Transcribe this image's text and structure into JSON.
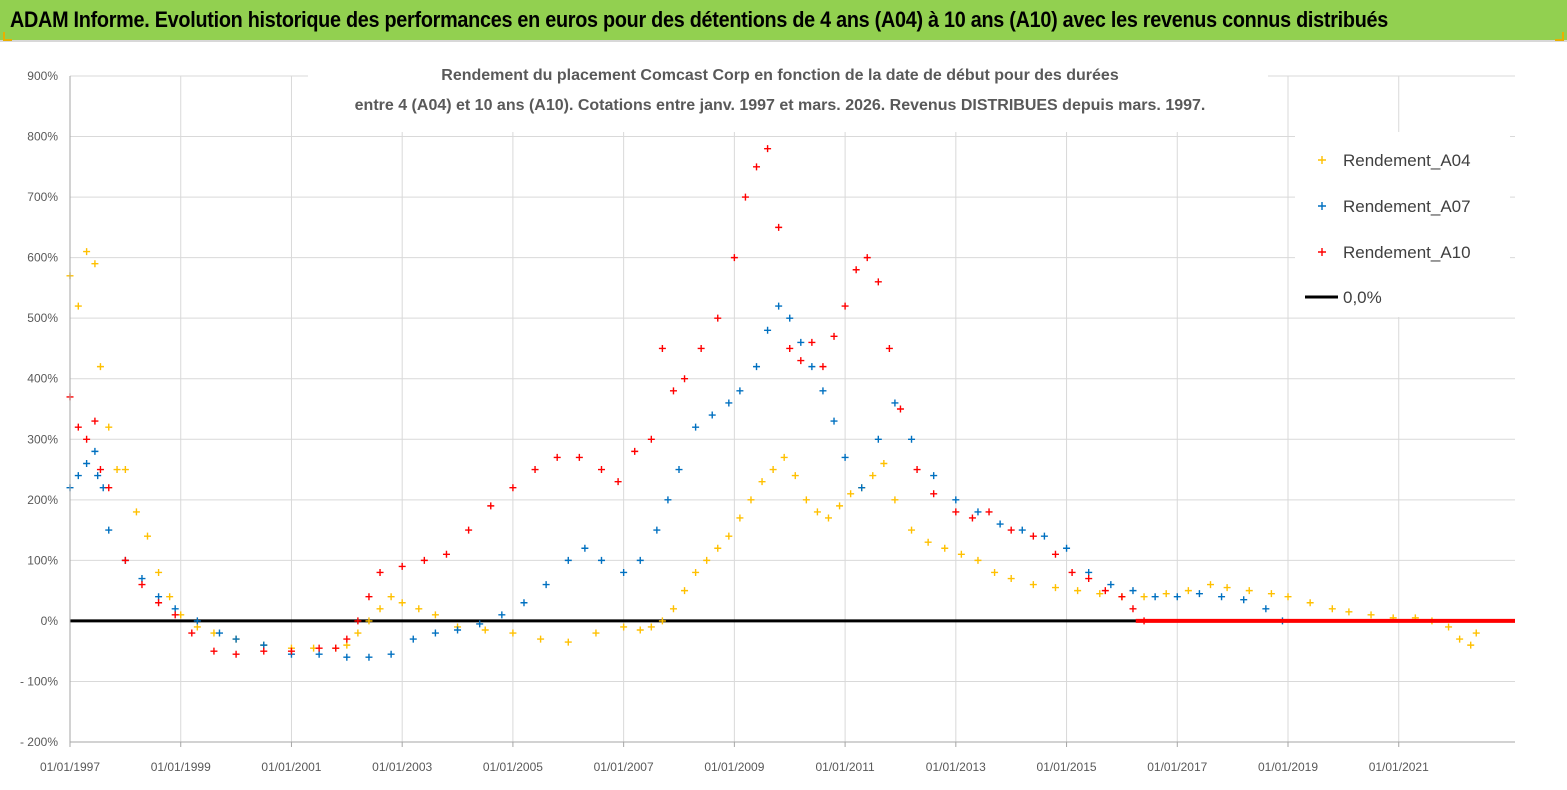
{
  "header": {
    "title": "ADAM Informe. Evolution historique des performances en euros pour des détentions de 4 ans (A04) à 10 ans (A10) avec les revenus connus distribués"
  },
  "colors": {
    "banner": "#92d050",
    "a04": "#ffc000",
    "a07": "#0070c0",
    "a10": "#ff0000",
    "zero": "#000000"
  },
  "chart_data": {
    "type": "scatter",
    "title": "Rendement du placement Comcast Corp en fonction de la date de début pour des durées",
    "subtitle": "entre 4 (A04) et 10 ans (A10). Cotations entre janv. 1997 et mars. 2026. Revenus DISTRIBUES depuis mars. 1997.",
    "xlabel": "",
    "ylabel": "",
    "xlim": [
      1997.0,
      2023.1
    ],
    "ylim": [
      -200,
      900
    ],
    "y_ticks": [
      -200,
      -100,
      0,
      100,
      200,
      300,
      400,
      500,
      600,
      700,
      800,
      900
    ],
    "y_tick_labels": [
      "- 200%",
      "- 100%",
      "0%",
      "100%",
      "200%",
      "300%",
      "400%",
      "500%",
      "600%",
      "700%",
      "800%",
      "900%"
    ],
    "x_ticks": [
      1997,
      1999,
      2001,
      2003,
      2005,
      2007,
      2009,
      2011,
      2013,
      2015,
      2017,
      2019,
      2021
    ],
    "x_tick_labels": [
      "01/01/1997",
      "01/01/1999",
      "01/01/2001",
      "01/01/2003",
      "01/01/2005",
      "01/01/2007",
      "01/01/2009",
      "01/01/2011",
      "01/01/2013",
      "01/01/2015",
      "01/01/2017",
      "01/01/2019",
      "01/01/2021"
    ],
    "legend_position": "top-right",
    "series": [
      {
        "name": "Rendement_A04",
        "marker": "+",
        "color": "#ffc000",
        "x": [
          1997.0,
          1997.15,
          1997.3,
          1997.45,
          1997.55,
          1997.7,
          1997.85,
          1998.0,
          1998.2,
          1998.4,
          1998.6,
          1998.8,
          1999.0,
          1999.3,
          1999.6,
          2000.0,
          2000.5,
          2001.0,
          2001.4,
          2001.8,
          2002.0,
          2002.2,
          2002.4,
          2002.6,
          2002.8,
          2003.0,
          2003.3,
          2003.6,
          2004.0,
          2004.5,
          2005.0,
          2005.5,
          2006.0,
          2006.5,
          2007.0,
          2007.3,
          2007.5,
          2007.7,
          2007.9,
          2008.1,
          2008.3,
          2008.5,
          2008.7,
          2008.9,
          2009.1,
          2009.3,
          2009.5,
          2009.7,
          2009.9,
          2010.1,
          2010.3,
          2010.5,
          2010.7,
          2010.9,
          2011.1,
          2011.3,
          2011.5,
          2011.7,
          2011.9,
          2012.2,
          2012.5,
          2012.8,
          2013.1,
          2013.4,
          2013.7,
          2014.0,
          2014.4,
          2014.8,
          2015.2,
          2015.6,
          2016.0,
          2016.4,
          2016.8,
          2017.2,
          2017.6,
          2017.9,
          2018.3,
          2018.7,
          2019.0,
          2019.4,
          2019.8,
          2020.1,
          2020.5,
          2020.9,
          2021.3,
          2021.6,
          2021.9,
          2022.1,
          2022.3,
          2022.4
        ],
        "y": [
          570,
          520,
          610,
          590,
          420,
          320,
          250,
          250,
          180,
          140,
          80,
          40,
          10,
          -10,
          -20,
          -30,
          -40,
          -45,
          -45,
          -45,
          -40,
          -20,
          0,
          20,
          40,
          30,
          20,
          10,
          -10,
          -15,
          -20,
          -30,
          -35,
          -20,
          -10,
          -15,
          -10,
          0,
          20,
          50,
          80,
          100,
          120,
          140,
          170,
          200,
          230,
          250,
          270,
          240,
          200,
          180,
          170,
          190,
          210,
          220,
          240,
          260,
          200,
          150,
          130,
          120,
          110,
          100,
          80,
          70,
          60,
          55,
          50,
          45,
          40,
          40,
          45,
          50,
          60,
          55,
          50,
          45,
          40,
          30,
          20,
          15,
          10,
          5,
          5,
          0,
          -10,
          -30,
          -40,
          -20
        ]
      },
      {
        "name": "Rendement_A07",
        "marker": "+",
        "color": "#0070c0",
        "x": [
          1997.0,
          1997.15,
          1997.3,
          1997.45,
          1997.5,
          1997.6,
          1997.7,
          1998.0,
          1998.3,
          1998.6,
          1998.9,
          1999.3,
          1999.7,
          2000.0,
          2000.5,
          2001.0,
          2001.5,
          2002.0,
          2002.4,
          2002.8,
          2003.2,
          2003.6,
          2004.0,
          2004.4,
          2004.8,
          2005.2,
          2005.6,
          2006.0,
          2006.3,
          2006.6,
          2007.0,
          2007.3,
          2007.6,
          2007.8,
          2008.0,
          2008.3,
          2008.6,
          2008.9,
          2009.1,
          2009.4,
          2009.6,
          2009.8,
          2010.0,
          2010.2,
          2010.4,
          2010.6,
          2010.8,
          2011.0,
          2011.3,
          2011.6,
          2011.9,
          2012.2,
          2012.6,
          2013.0,
          2013.4,
          2013.8,
          2014.2,
          2014.6,
          2015.0,
          2015.4,
          2015.8,
          2016.2,
          2016.6,
          2017.0,
          2017.4,
          2017.8,
          2018.2,
          2018.6,
          2018.9
        ],
        "y": [
          220,
          240,
          260,
          280,
          240,
          220,
          150,
          100,
          70,
          40,
          20,
          0,
          -20,
          -30,
          -40,
          -55,
          -55,
          -60,
          -60,
          -55,
          -30,
          -20,
          -15,
          -5,
          10,
          30,
          60,
          100,
          120,
          100,
          80,
          100,
          150,
          200,
          250,
          320,
          340,
          360,
          380,
          420,
          480,
          520,
          500,
          460,
          420,
          380,
          330,
          270,
          220,
          300,
          360,
          300,
          240,
          200,
          180,
          160,
          150,
          140,
          120,
          80,
          60,
          50,
          40,
          40,
          45,
          40,
          35,
          20,
          0
        ]
      },
      {
        "name": "Rendement_A10",
        "marker": "+",
        "color": "#ff0000",
        "x": [
          1997.0,
          1997.15,
          1997.3,
          1997.45,
          1997.55,
          1997.7,
          1998.0,
          1998.3,
          1998.6,
          1998.9,
          1999.2,
          1999.6,
          2000.0,
          2000.5,
          2001.0,
          2001.5,
          2001.8,
          2002.0,
          2002.2,
          2002.4,
          2002.6,
          2003.0,
          2003.4,
          2003.8,
          2004.2,
          2004.6,
          2005.0,
          2005.4,
          2005.8,
          2006.2,
          2006.6,
          2006.9,
          2007.2,
          2007.5,
          2007.7,
          2007.9,
          2008.1,
          2008.4,
          2008.7,
          2009.0,
          2009.2,
          2009.4,
          2009.6,
          2009.8,
          2010.0,
          2010.2,
          2010.4,
          2010.6,
          2010.8,
          2011.0,
          2011.2,
          2011.4,
          2011.6,
          2011.8,
          2012.0,
          2012.3,
          2012.6,
          2013.0,
          2013.3,
          2013.6,
          2014.0,
          2014.4,
          2014.8,
          2015.1,
          2015.4,
          2015.7,
          2016.0,
          2016.2,
          2016.4
        ],
        "y": [
          370,
          320,
          300,
          330,
          250,
          220,
          100,
          60,
          30,
          10,
          -20,
          -50,
          -55,
          -50,
          -50,
          -45,
          -45,
          -30,
          0,
          40,
          80,
          90,
          100,
          110,
          150,
          190,
          220,
          250,
          270,
          270,
          250,
          230,
          280,
          300,
          450,
          380,
          400,
          450,
          500,
          600,
          700,
          750,
          780,
          650,
          450,
          430,
          460,
          420,
          470,
          520,
          580,
          600,
          560,
          450,
          350,
          250,
          210,
          180,
          170,
          180,
          150,
          140,
          110,
          80,
          70,
          50,
          40,
          20,
          0
        ]
      },
      {
        "name": "0,0%",
        "type": "line",
        "color": "#000000",
        "x": [
          1997.0,
          2023.1
        ],
        "y": [
          0,
          0
        ]
      }
    ],
    "annotations": []
  }
}
